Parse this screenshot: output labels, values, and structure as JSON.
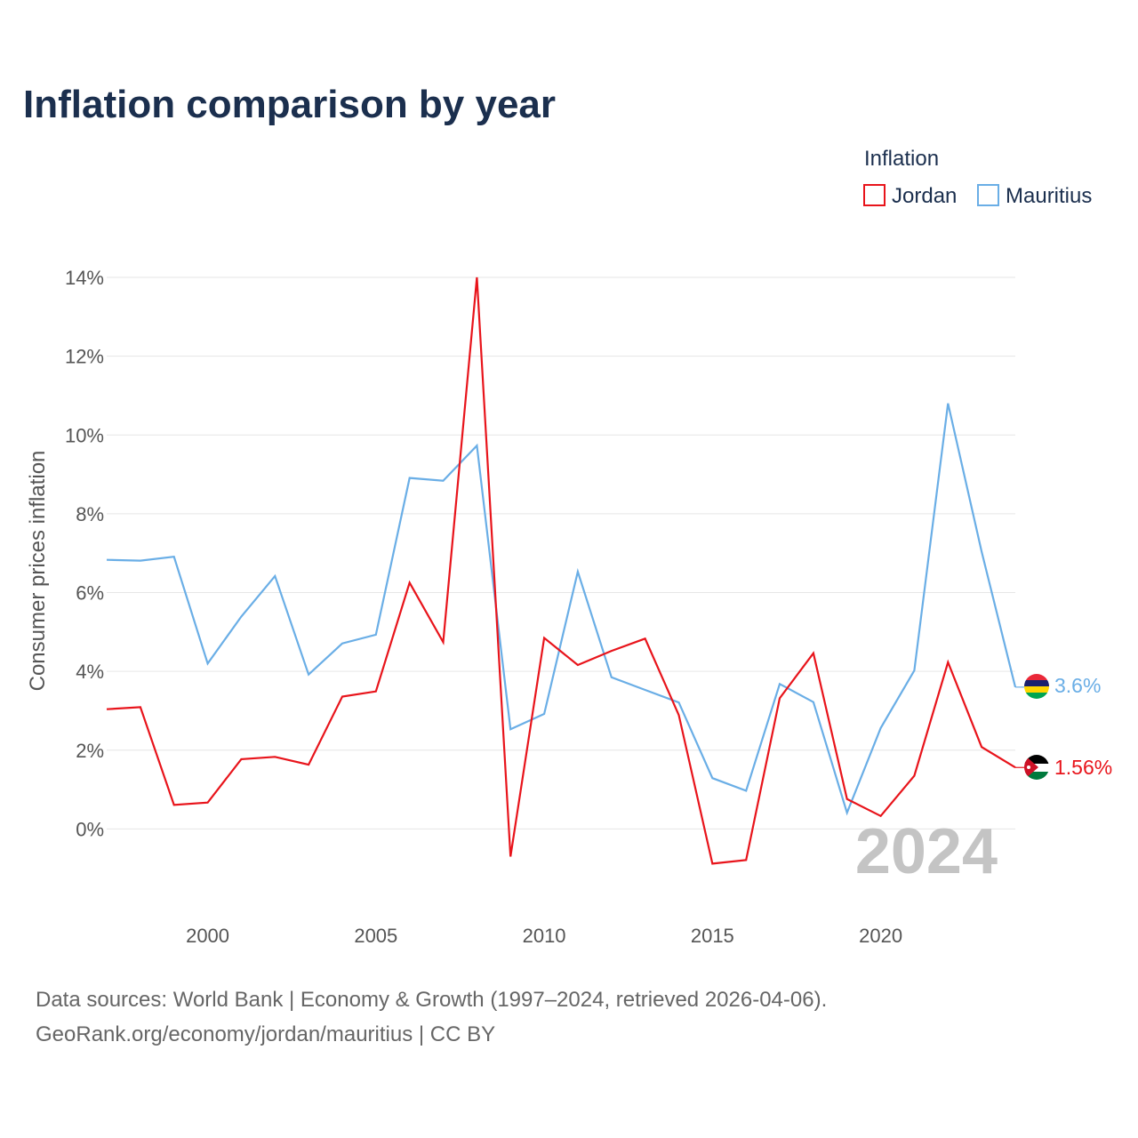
{
  "chart_data": {
    "type": "line",
    "title": "Inflation comparison by year",
    "legend_title": "Inflation",
    "ylabel": "Consumer prices inflation",
    "xlabel": "",
    "x": [
      1997,
      1998,
      1999,
      2000,
      2001,
      2002,
      2003,
      2004,
      2005,
      2006,
      2007,
      2008,
      2009,
      2010,
      2011,
      2012,
      2013,
      2014,
      2015,
      2016,
      2017,
      2018,
      2019,
      2020,
      2021,
      2022,
      2023,
      2024
    ],
    "xlim": [
      1997,
      2024
    ],
    "ylim": [
      -2,
      14
    ],
    "x_ticks": [
      2000,
      2005,
      2010,
      2015,
      2020
    ],
    "y_ticks": [
      0,
      2,
      4,
      6,
      8,
      10,
      12,
      14
    ],
    "y_tick_labels": [
      "0%",
      "2%",
      "4%",
      "6%",
      "8%",
      "10%",
      "12%",
      "14%"
    ],
    "series": [
      {
        "name": "Jordan",
        "color": "#e8141b",
        "end_label": "1.56%",
        "flag": "jordan-flag",
        "values": [
          3.04,
          3.09,
          0.61,
          0.67,
          1.77,
          1.83,
          1.63,
          3.36,
          3.49,
          6.25,
          4.74,
          14.0,
          -0.7,
          4.85,
          4.16,
          4.52,
          4.83,
          2.89,
          -0.88,
          -0.79,
          3.32,
          4.46,
          0.76,
          0.33,
          1.35,
          4.23,
          2.08,
          1.56
        ]
      },
      {
        "name": "Mauritius",
        "color": "#6aaee6",
        "end_label": "3.6%",
        "flag": "mauritius-flag",
        "values": [
          6.83,
          6.81,
          6.91,
          4.2,
          5.39,
          6.42,
          3.92,
          4.71,
          4.93,
          8.91,
          8.84,
          9.73,
          2.53,
          2.92,
          6.53,
          3.85,
          3.53,
          3.21,
          1.29,
          0.97,
          3.68,
          3.22,
          0.41,
          2.56,
          4.02,
          10.8,
          7.04,
          3.6
        ]
      }
    ],
    "watermark_year": "2024"
  },
  "footer": {
    "source_line": "Data sources: World Bank | Economy & Growth (1997–2024, retrieved 2026-04-06).",
    "credit_line": "GeoRank.org/economy/jordan/mauritius | CC BY"
  }
}
